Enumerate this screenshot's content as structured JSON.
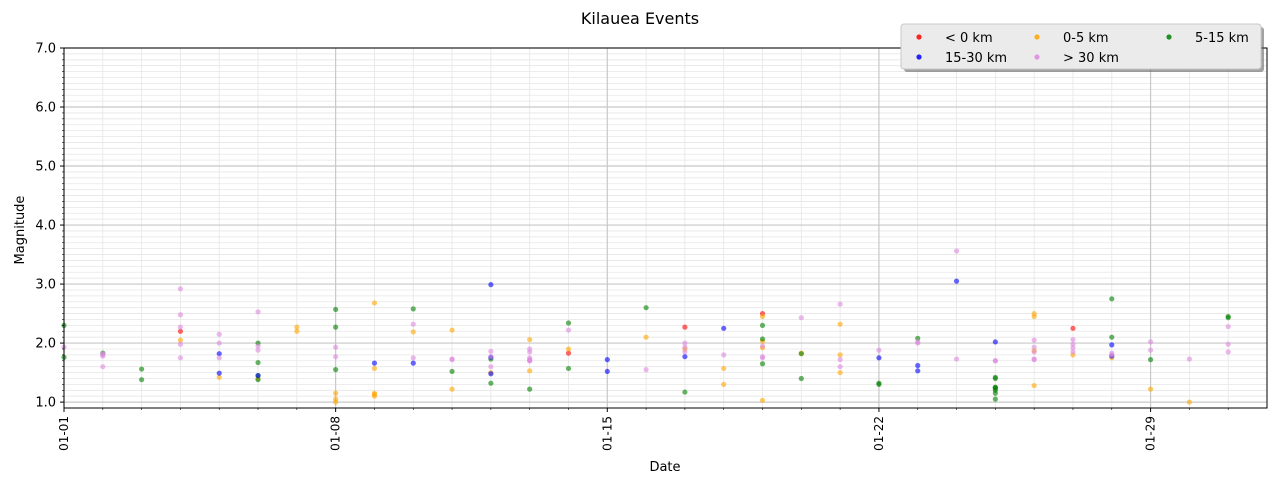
{
  "chart_data": {
    "type": "scatter",
    "title": "Kilauea Events",
    "xlabel": "Date",
    "ylabel": "Magnitude",
    "xlim": [
      "2024-01-01",
      "2024-02-01"
    ],
    "ylim": [
      0.9,
      7.0
    ],
    "x_ticks": [
      "01-01",
      "01-08",
      "01-15",
      "01-22",
      "01-29"
    ],
    "y_ticks": [
      "1.0",
      "2.0",
      "3.0",
      "4.0",
      "5.0",
      "6.0",
      "7.0"
    ],
    "grid": true,
    "legend_position": "top-right",
    "series": [
      {
        "name": "< 0 km",
        "color": "#ff0000",
        "points": [
          [
            "2024-01-04",
            2.2
          ],
          [
            "2024-01-14",
            1.83
          ],
          [
            "2024-01-17",
            2.27
          ],
          [
            "2024-01-19",
            2.5
          ],
          [
            "2024-01-27",
            2.25
          ]
        ]
      },
      {
        "name": "0-5 km",
        "color": "#ffa500",
        "points": [
          [
            "2024-01-04",
            2.05
          ],
          [
            "2024-01-05",
            1.42
          ],
          [
            "2024-01-06",
            1.4
          ],
          [
            "2024-01-07",
            2.27
          ],
          [
            "2024-01-07",
            2.2
          ],
          [
            "2024-01-08",
            1.15
          ],
          [
            "2024-01-08",
            1.05
          ],
          [
            "2024-01-08",
            1.0
          ],
          [
            "2024-01-09",
            1.15
          ],
          [
            "2024-01-09",
            1.13
          ],
          [
            "2024-01-09",
            1.1
          ],
          [
            "2024-01-09",
            2.68
          ],
          [
            "2024-01-09",
            1.57
          ],
          [
            "2024-01-10",
            2.19
          ],
          [
            "2024-01-11",
            2.22
          ],
          [
            "2024-01-11",
            1.22
          ],
          [
            "2024-01-12",
            1.5
          ],
          [
            "2024-01-13",
            2.06
          ],
          [
            "2024-01-13",
            1.53
          ],
          [
            "2024-01-14",
            1.9
          ],
          [
            "2024-01-16",
            2.1
          ],
          [
            "2024-01-17",
            1.9
          ],
          [
            "2024-01-18",
            1.57
          ],
          [
            "2024-01-18",
            1.3
          ],
          [
            "2024-01-19",
            1.03
          ],
          [
            "2024-01-19",
            1.92
          ],
          [
            "2024-01-19",
            2.03
          ],
          [
            "2024-01-19",
            2.45
          ],
          [
            "2024-01-20",
            1.83
          ],
          [
            "2024-01-21",
            2.32
          ],
          [
            "2024-01-21",
            1.5
          ],
          [
            "2024-01-21",
            1.8
          ],
          [
            "2024-01-26",
            2.5
          ],
          [
            "2024-01-26",
            2.45
          ],
          [
            "2024-01-26",
            1.87
          ],
          [
            "2024-01-26",
            1.28
          ],
          [
            "2024-01-27",
            1.8
          ],
          [
            "2024-01-28",
            1.75
          ],
          [
            "2024-01-29",
            1.22
          ],
          [
            "2024-01-30",
            1.0
          ]
        ]
      },
      {
        "name": "5-15 km",
        "color": "#008000",
        "points": [
          [
            "2024-01-01",
            2.3
          ],
          [
            "2024-01-01",
            1.76
          ],
          [
            "2024-01-02",
            1.83
          ],
          [
            "2024-01-03",
            1.56
          ],
          [
            "2024-01-03",
            1.38
          ],
          [
            "2024-01-06",
            2.0
          ],
          [
            "2024-01-06",
            1.67
          ],
          [
            "2024-01-06",
            1.45
          ],
          [
            "2024-01-06",
            1.38
          ],
          [
            "2024-01-08",
            1.55
          ],
          [
            "2024-01-08",
            2.57
          ],
          [
            "2024-01-08",
            2.27
          ],
          [
            "2024-01-10",
            2.58
          ],
          [
            "2024-01-11",
            1.52
          ],
          [
            "2024-01-12",
            1.32
          ],
          [
            "2024-01-12",
            1.73
          ],
          [
            "2024-01-13",
            1.22
          ],
          [
            "2024-01-14",
            1.57
          ],
          [
            "2024-01-14",
            2.34
          ],
          [
            "2024-01-16",
            2.6
          ],
          [
            "2024-01-17",
            1.17
          ],
          [
            "2024-01-19",
            2.3
          ],
          [
            "2024-01-19",
            2.07
          ],
          [
            "2024-01-19",
            1.65
          ],
          [
            "2024-01-20",
            1.82
          ],
          [
            "2024-01-20",
            1.4
          ],
          [
            "2024-01-22",
            1.3
          ],
          [
            "2024-01-22",
            1.32
          ],
          [
            "2024-01-23",
            2.08
          ],
          [
            "2024-01-25",
            1.23
          ],
          [
            "2024-01-25",
            1.2
          ],
          [
            "2024-01-25",
            1.25
          ],
          [
            "2024-01-25",
            1.42
          ],
          [
            "2024-01-25",
            1.4
          ],
          [
            "2024-01-25",
            1.25
          ],
          [
            "2024-01-25",
            1.15
          ],
          [
            "2024-01-25",
            1.05
          ],
          [
            "2024-01-28",
            2.75
          ],
          [
            "2024-01-28",
            2.1
          ],
          [
            "2024-01-29",
            1.72
          ],
          [
            "2024-01-31",
            2.45
          ],
          [
            "2024-01-31",
            2.43
          ]
        ]
      },
      {
        "name": "15-30 km",
        "color": "#0000ff",
        "points": [
          [
            "2024-01-05",
            1.82
          ],
          [
            "2024-01-05",
            1.49
          ],
          [
            "2024-01-06",
            1.45
          ],
          [
            "2024-01-09",
            1.66
          ],
          [
            "2024-01-10",
            1.66
          ],
          [
            "2024-01-12",
            1.48
          ],
          [
            "2024-01-12",
            2.99
          ],
          [
            "2024-01-12",
            1.76
          ],
          [
            "2024-01-15",
            1.52
          ],
          [
            "2024-01-15",
            1.72
          ],
          [
            "2024-01-17",
            1.77
          ],
          [
            "2024-01-18",
            2.25
          ],
          [
            "2024-01-22",
            1.75
          ],
          [
            "2024-01-23",
            1.53
          ],
          [
            "2024-01-23",
            1.62
          ],
          [
            "2024-01-24",
            3.05
          ],
          [
            "2024-01-25",
            2.02
          ],
          [
            "2024-01-28",
            1.97
          ],
          [
            "2024-01-28",
            1.78
          ]
        ]
      },
      {
        "name": "> 30 km",
        "color": "#dd88dd",
        "points": [
          [
            "2024-01-01",
            1.93
          ],
          [
            "2024-01-02",
            1.82
          ],
          [
            "2024-01-02",
            1.78
          ],
          [
            "2024-01-02",
            1.8
          ],
          [
            "2024-01-02",
            1.6
          ],
          [
            "2024-01-04",
            2.48
          ],
          [
            "2024-01-04",
            1.98
          ],
          [
            "2024-01-04",
            2.92
          ],
          [
            "2024-01-04",
            2.27
          ],
          [
            "2024-01-04",
            1.75
          ],
          [
            "2024-01-05",
            1.75
          ],
          [
            "2024-01-05",
            2.15
          ],
          [
            "2024-01-05",
            2.0
          ],
          [
            "2024-01-06",
            2.53
          ],
          [
            "2024-01-06",
            1.88
          ],
          [
            "2024-01-06",
            1.95
          ],
          [
            "2024-01-08",
            1.93
          ],
          [
            "2024-01-08",
            1.77
          ],
          [
            "2024-01-10",
            2.32
          ],
          [
            "2024-01-10",
            1.75
          ],
          [
            "2024-01-11",
            1.73
          ],
          [
            "2024-01-11",
            1.72
          ],
          [
            "2024-01-12",
            1.86
          ],
          [
            "2024-01-12",
            1.6
          ],
          [
            "2024-01-12",
            1.77
          ],
          [
            "2024-01-13",
            1.75
          ],
          [
            "2024-01-13",
            1.85
          ],
          [
            "2024-01-13",
            1.7
          ],
          [
            "2024-01-13",
            1.9
          ],
          [
            "2024-01-13",
            1.72
          ],
          [
            "2024-01-13",
            1.7
          ],
          [
            "2024-01-14",
            2.22
          ],
          [
            "2024-01-16",
            1.55
          ],
          [
            "2024-01-17",
            1.85
          ],
          [
            "2024-01-17",
            1.93
          ],
          [
            "2024-01-17",
            2.0
          ],
          [
            "2024-01-18",
            1.8
          ],
          [
            "2024-01-19",
            1.77
          ],
          [
            "2024-01-19",
            1.95
          ],
          [
            "2024-01-19",
            1.75
          ],
          [
            "2024-01-20",
            2.43
          ],
          [
            "2024-01-21",
            2.66
          ],
          [
            "2024-01-21",
            1.72
          ],
          [
            "2024-01-21",
            1.6
          ],
          [
            "2024-01-22",
            1.88
          ],
          [
            "2024-01-23",
            2.02
          ],
          [
            "2024-01-23",
            2.0
          ],
          [
            "2024-01-24",
            1.73
          ],
          [
            "2024-01-24",
            3.56
          ],
          [
            "2024-01-25",
            1.7
          ],
          [
            "2024-01-25",
            1.7
          ],
          [
            "2024-01-26",
            1.72
          ],
          [
            "2024-01-26",
            1.93
          ],
          [
            "2024-01-26",
            2.05
          ],
          [
            "2024-01-26",
            1.85
          ],
          [
            "2024-01-26",
            1.73
          ],
          [
            "2024-01-27",
            2.06
          ],
          [
            "2024-01-27",
            1.98
          ],
          [
            "2024-01-27",
            1.92
          ],
          [
            "2024-01-27",
            1.85
          ],
          [
            "2024-01-28",
            1.83
          ],
          [
            "2024-01-28",
            1.8
          ],
          [
            "2024-01-29",
            2.02
          ],
          [
            "2024-01-29",
            1.88
          ],
          [
            "2024-01-30",
            1.73
          ],
          [
            "2024-01-31",
            2.28
          ],
          [
            "2024-01-31",
            1.98
          ],
          [
            "2024-01-31",
            1.85
          ]
        ]
      }
    ]
  }
}
